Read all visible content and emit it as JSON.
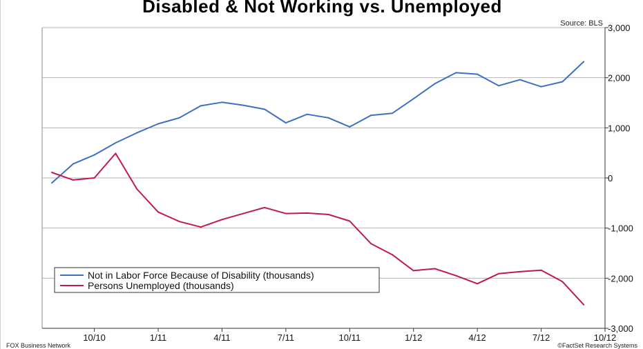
{
  "title": "Disabled & Not Working vs. Unemployed",
  "source": "Source: BLS",
  "footer_left": "FOX Business Network",
  "footer_right": "©FactSet Research Systems",
  "chart_data": {
    "type": "line",
    "title": "Disabled & Not Working vs. Unemployed",
    "xlabel": "",
    "ylabel": "",
    "x": [
      "2010-08",
      "2010-09",
      "2010-10",
      "2010-11",
      "2010-12",
      "2011-01",
      "2011-02",
      "2011-03",
      "2011-04",
      "2011-05",
      "2011-06",
      "2011-07",
      "2011-08",
      "2011-09",
      "2011-10",
      "2011-11",
      "2011-12",
      "2012-01",
      "2012-02",
      "2012-03",
      "2012-04",
      "2012-05",
      "2012-06",
      "2012-07",
      "2012-08",
      "2012-09",
      "2012-10"
    ],
    "x_tick_labels": [
      "10/10",
      "1/11",
      "4/11",
      "7/11",
      "10/11",
      "1/12",
      "4/12",
      "7/12",
      "10/12"
    ],
    "y_tick_labels": [
      "3,000",
      "2,000",
      "1,000",
      "0",
      "-1,000",
      "-2,000",
      "-3,000"
    ],
    "y_ticks": [
      3000,
      2000,
      1000,
      0,
      -1000,
      -2000,
      -3000
    ],
    "ylim": [
      -3000,
      3000
    ],
    "y_axis_side": "right",
    "grid": "horizontal",
    "legend_position": "bottom-left",
    "series": [
      {
        "name": "Not in Labor Force Because of Disability (thousands)",
        "color": "#3c6fc4",
        "values": [
          -100,
          280,
          460,
          700,
          900,
          1080,
          1200,
          1440,
          1510,
          1450,
          1370,
          1100,
          1270,
          1200,
          1020,
          1250,
          1290,
          1580,
          1880,
          2100,
          2070,
          1840,
          1960,
          1820,
          1920,
          2320,
          null
        ]
      },
      {
        "name": "Persons Unemployed (thousands)",
        "color": "#c0194e",
        "values": [
          110,
          -40,
          0,
          490,
          -220,
          -680,
          -870,
          -980,
          -830,
          -710,
          -590,
          -710,
          -700,
          -730,
          -860,
          -1310,
          -1530,
          -1850,
          -1810,
          -1950,
          -2110,
          -1910,
          -1870,
          -1840,
          -2070,
          -2530,
          null
        ]
      }
    ]
  }
}
